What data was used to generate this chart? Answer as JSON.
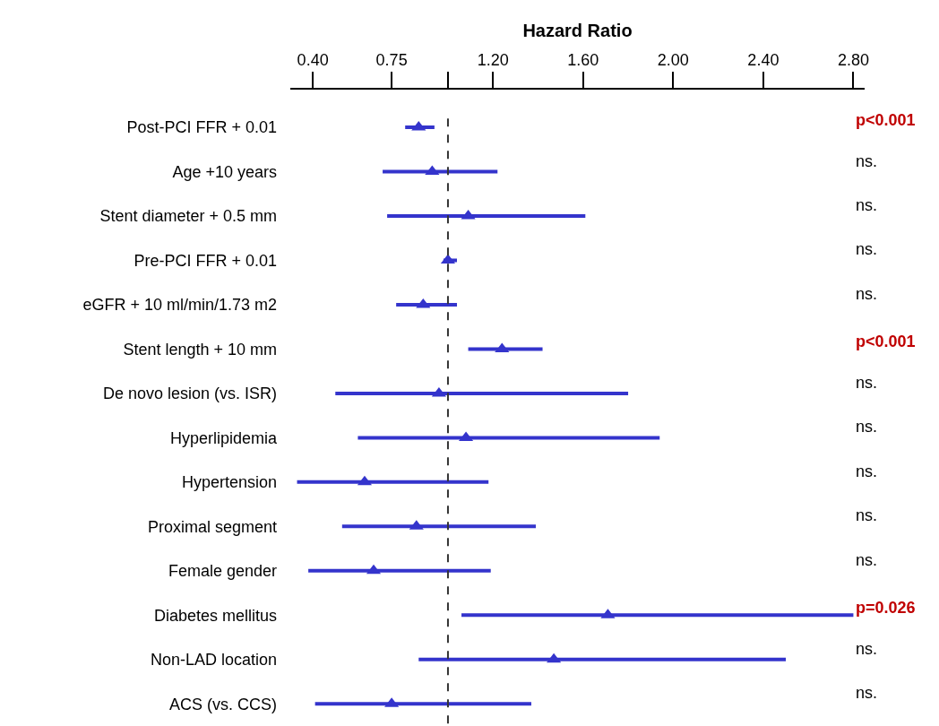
{
  "chart_data": {
    "type": "scatter",
    "orientation": "horizontal",
    "xlabel": "Hazard Ratio",
    "categories": [
      "Post-PCI FFR + 0.01",
      "Age +10 years",
      "Stent diameter + 0.5 mm",
      "Pre-PCI FFR + 0.01",
      "eGFR + 10 ml/min/1.73 m2",
      "Stent length + 10 mm",
      "De novo lesion (vs. ISR)",
      "Hyperlipidemia",
      "Hypertension",
      "Proximal segment",
      "Female gender",
      "Diabetes mellitus",
      "Non-LAD location",
      "ACS (vs. CCS)"
    ],
    "series": [
      {
        "color": "#3434cc",
        "values": [
          0.87,
          0.93,
          1.09,
          1.0,
          0.89,
          1.24,
          0.96,
          1.08,
          0.63,
          0.86,
          0.67,
          1.71,
          1.47,
          0.75
        ],
        "errors": [
          [
            0.81,
            0.94
          ],
          [
            0.71,
            1.22
          ],
          [
            0.73,
            1.61
          ],
          [
            0.98,
            1.04
          ],
          [
            0.77,
            1.04
          ],
          [
            1.09,
            1.42
          ],
          [
            0.5,
            1.8
          ],
          [
            0.6,
            1.94
          ],
          [
            0.33,
            1.18
          ],
          [
            0.53,
            1.39
          ],
          [
            0.38,
            1.19
          ],
          [
            1.06,
            2.8
          ],
          [
            0.87,
            2.5
          ],
          [
            0.41,
            1.37
          ]
        ]
      }
    ],
    "marker": "triangle",
    "xlim": [
      0.3,
      2.85
    ],
    "xticks": [
      {
        "value": 0.4,
        "label": "0.40"
      },
      {
        "value": 0.75,
        "label": "0.75"
      },
      {
        "value": 1.0,
        "label": null
      },
      {
        "value": 1.2,
        "label": "1.20"
      },
      {
        "value": 1.6,
        "label": "1.60"
      },
      {
        "value": 2.0,
        "label": "2.00"
      },
      {
        "value": 2.4,
        "label": "2.40"
      },
      {
        "value": 2.8,
        "label": "2.80"
      }
    ],
    "ref_lines": [
      {
        "axis": "x",
        "value": 1.0,
        "color": "#333333",
        "line_style": "dashed"
      }
    ],
    "annotations": [
      "p<0.001",
      "ns.",
      "ns.",
      "ns.",
      "ns.",
      "p<0.001",
      "ns.",
      "ns.",
      "ns.",
      "ns.",
      "ns.",
      "p=0.026",
      "ns.",
      "ns."
    ]
  }
}
